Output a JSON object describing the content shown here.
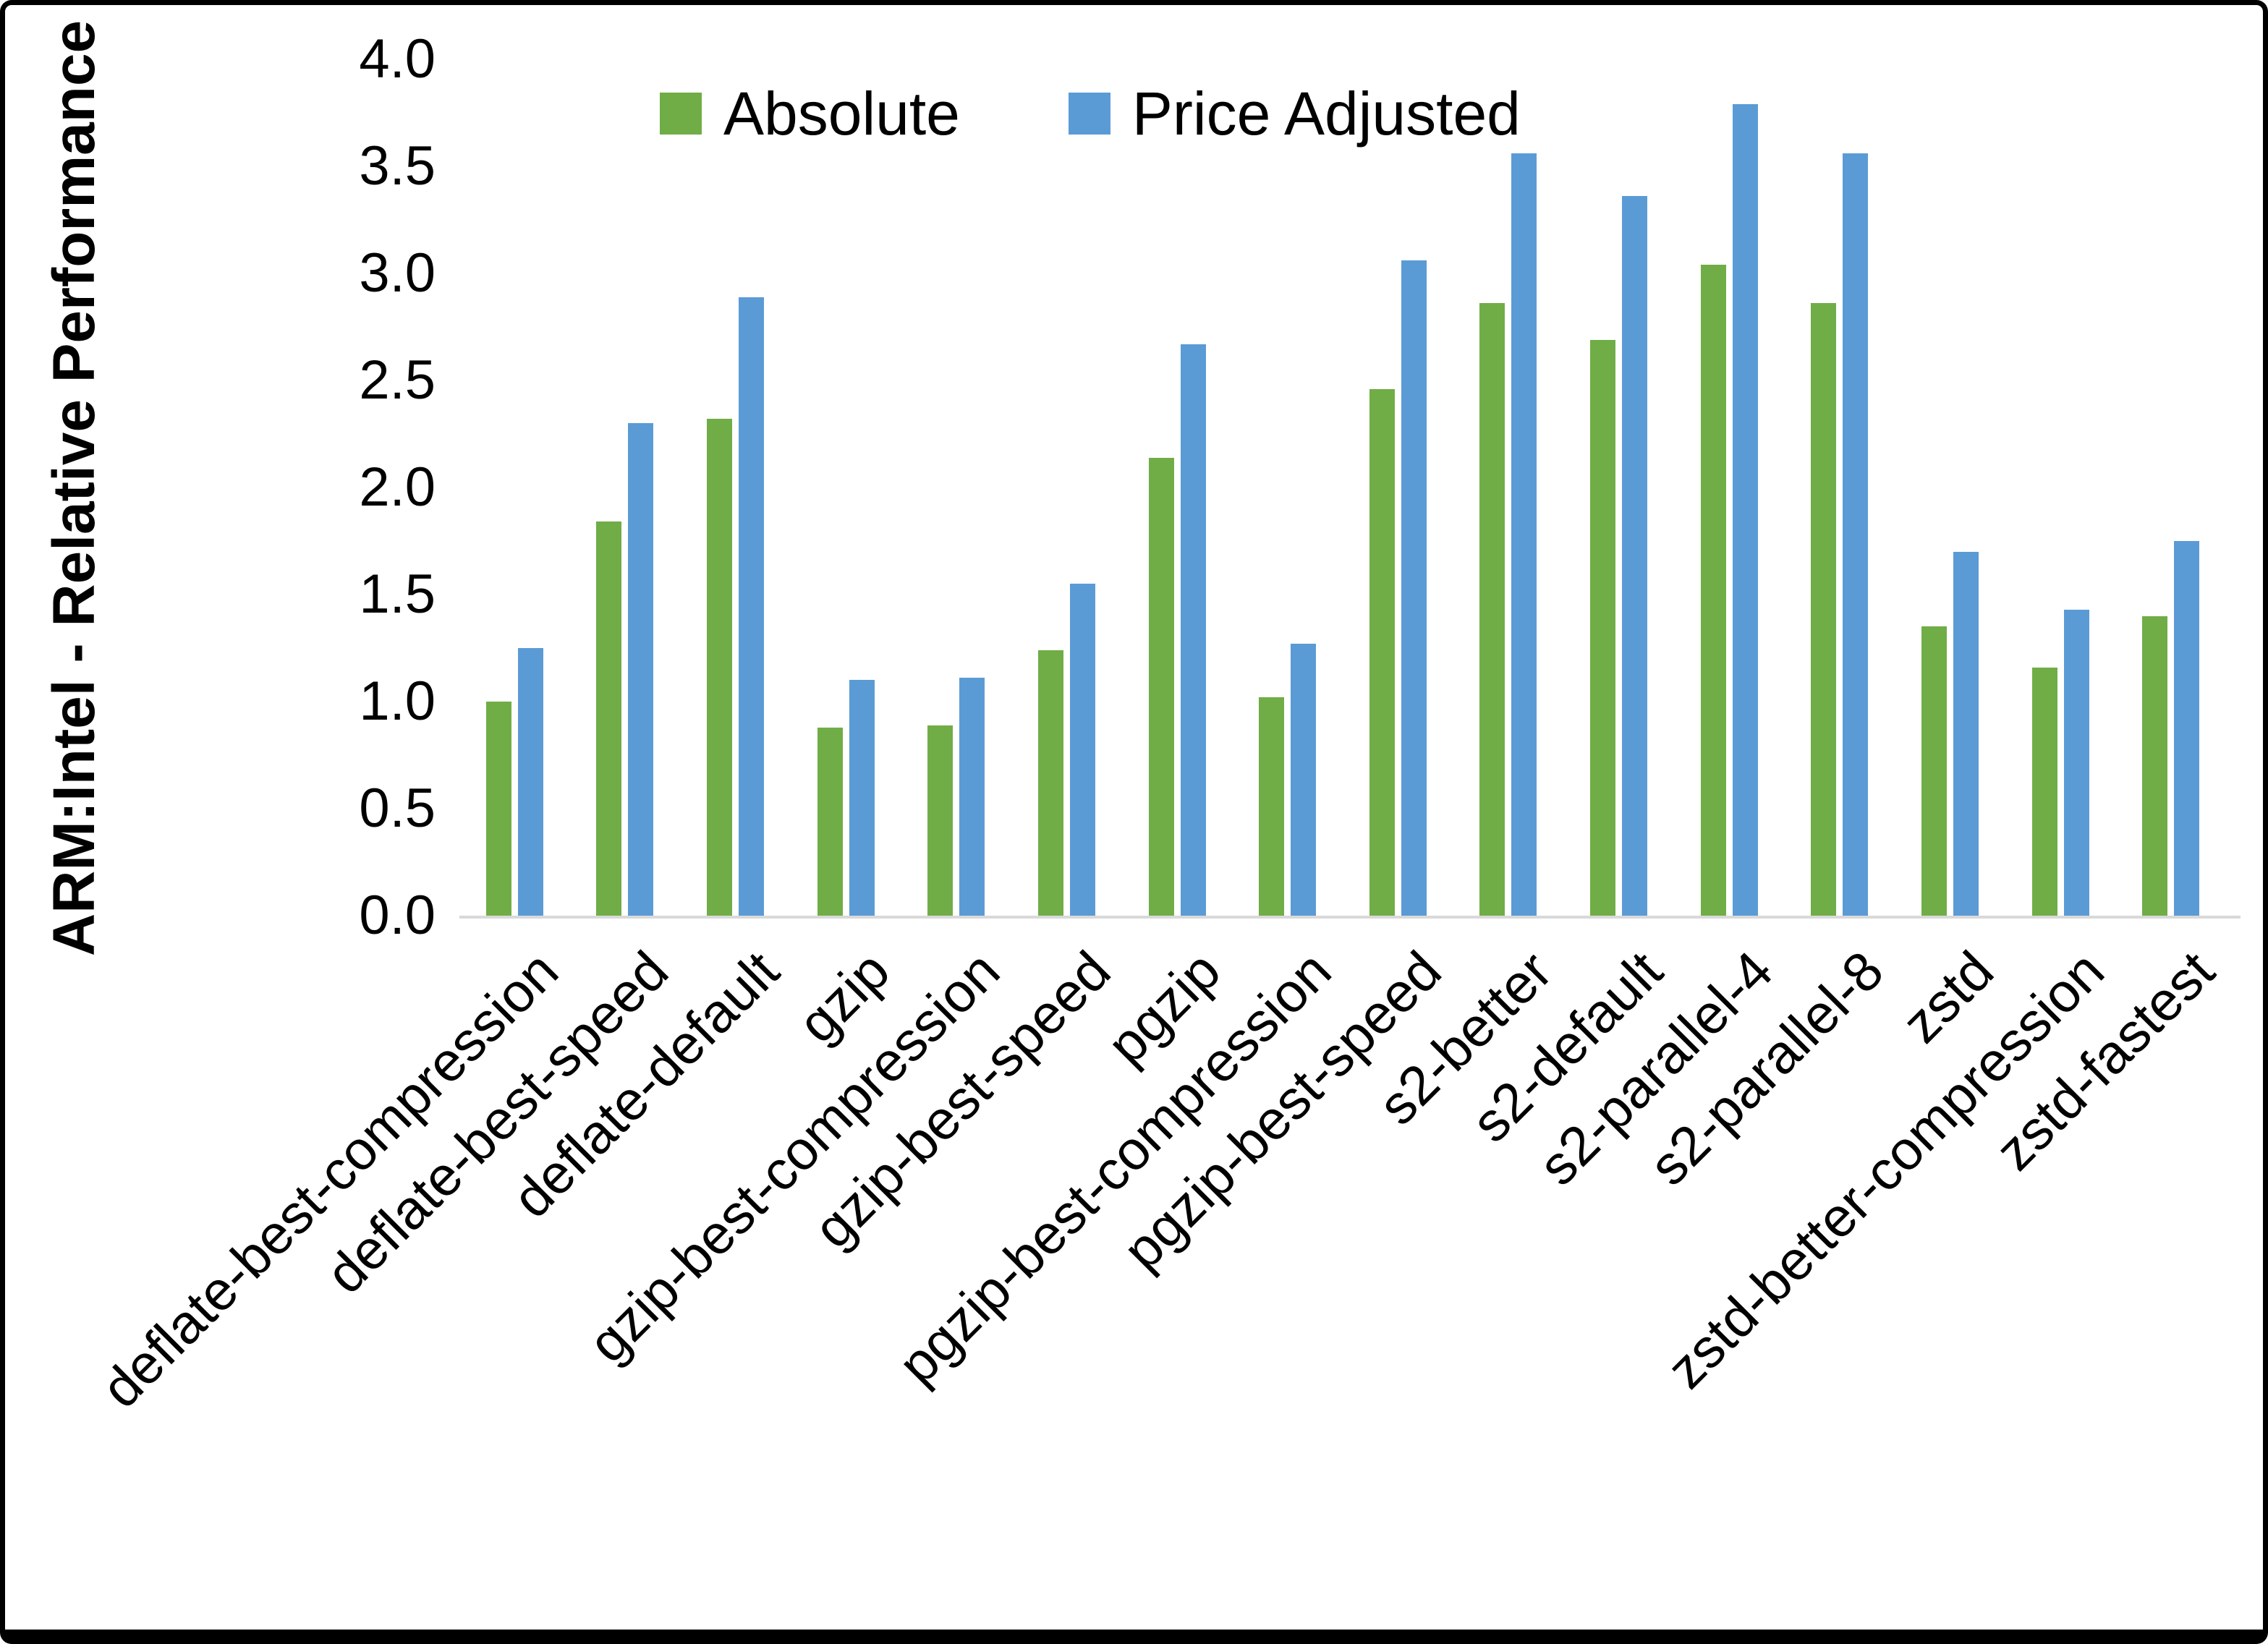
{
  "chart_data": {
    "type": "bar",
    "title": "",
    "ylabel": "ARM:Intel - Relative Performance",
    "xlabel": "",
    "ylim": [
      0.0,
      4.0
    ],
    "ytick_step": 0.5,
    "ytick_labels": [
      "0.0",
      "0.5",
      "1.0",
      "1.5",
      "2.0",
      "2.5",
      "3.0",
      "3.5",
      "4.0"
    ],
    "grid": "off",
    "legend_position": "top-center",
    "categories": [
      "deflate-best-compression",
      "deflate-best-speed",
      "deflate-default",
      "gzip",
      "gzip-best-compression",
      "gzip-best-speed",
      "pgzip",
      "pgzip-best-compression",
      "pgzip-best-speed",
      "s2-better",
      "s2-default",
      "s2-parallel-4",
      "s2-parallel-8",
      "zstd",
      "zstd-better-compression",
      "zstd-fastest"
    ],
    "series": [
      {
        "name": "Absolute",
        "color": "#70AD47",
        "values": [
          1.0,
          1.84,
          2.32,
          0.88,
          0.89,
          1.24,
          2.14,
          1.02,
          2.46,
          2.86,
          2.69,
          3.04,
          2.86,
          1.35,
          1.16,
          1.4
        ]
      },
      {
        "name": "Price Adjusted",
        "color": "#5B9BD5",
        "values": [
          1.25,
          2.3,
          2.89,
          1.1,
          1.11,
          1.55,
          2.67,
          1.27,
          3.06,
          3.56,
          3.36,
          3.79,
          3.56,
          1.7,
          1.43,
          1.75
        ]
      }
    ],
    "axis_line_color": "#D9D9D9",
    "frame_border_color": "#000000",
    "background_color": "#FFFFFF"
  }
}
